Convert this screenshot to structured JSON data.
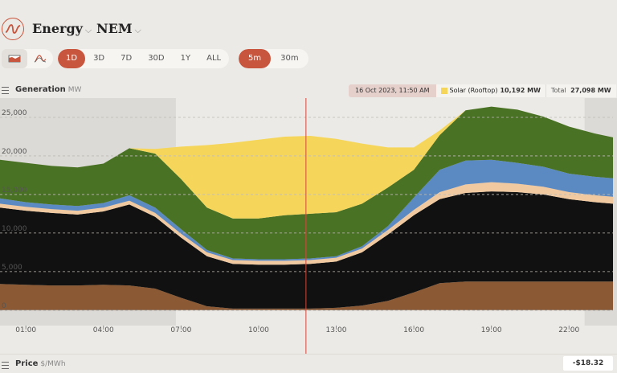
{
  "header": {
    "logo_icon": "waveform-logo-icon",
    "energy_menu": "Energy",
    "region_menu": "NEM"
  },
  "toolbar": {
    "chart_types": [
      {
        "icon": "stacked-area-chart-icon",
        "active": true
      },
      {
        "icon": "line-chart-icon",
        "active": false
      }
    ],
    "ranges": [
      "1D",
      "3D",
      "7D",
      "30D",
      "1Y",
      "ALL"
    ],
    "active_range": "1D",
    "intervals": [
      "5m",
      "30m"
    ],
    "active_interval": "5m"
  },
  "generation_panel": {
    "title": "Generation",
    "unit": "MW",
    "tooltip": {
      "date": "16 Oct 2023, 11:50 AM",
      "series_name": "Solar (Rooftop)",
      "series_value": "10,192 MW",
      "series_color": "#f5d65b",
      "total_label": "Total",
      "total_value": "27,098 MW"
    }
  },
  "chart_data": {
    "type": "area",
    "stacked": true,
    "x_ticks": [
      "01:00",
      "04:00",
      "07:00",
      "10:00",
      "13:00",
      "16:00",
      "19:00",
      "22:00"
    ],
    "y_ticks": [
      "25,000",
      "20,000",
      "15,000",
      "10,000",
      "5,000",
      "0"
    ],
    "ylim": [
      -2000,
      27500
    ],
    "x_hours": [
      0,
      1,
      2,
      3,
      4,
      5,
      6,
      7,
      8,
      9,
      10,
      11,
      12,
      13,
      14,
      15,
      16,
      17,
      18,
      19,
      20,
      21,
      22,
      23,
      23.7
    ],
    "series": [
      {
        "color": "#8b5a34",
        "values": [
          3400,
          3300,
          3200,
          3200,
          3300,
          3200,
          2800,
          1600,
          500,
          200,
          200,
          200,
          200,
          300,
          600,
          1200,
          2300,
          3500,
          3700,
          3700,
          3700,
          3700,
          3700,
          3700,
          3700
        ]
      },
      {
        "color": "#111111",
        "values": [
          9900,
          9600,
          9400,
          9200,
          9500,
          10500,
          9300,
          7800,
          6500,
          5800,
          5700,
          5700,
          5800,
          6000,
          6900,
          8600,
          10000,
          10900,
          11500,
          11700,
          11600,
          11300,
          10700,
          10300,
          10100
        ]
      },
      {
        "color": "#f0c9a0",
        "values": [
          500,
          500,
          500,
          500,
          500,
          500,
          500,
          500,
          500,
          500,
          500,
          500,
          500,
          500,
          500,
          600,
          700,
          900,
          1100,
          1200,
          1100,
          1000,
          900,
          900,
          900
        ]
      },
      {
        "color": "#5b89c2",
        "values": [
          700,
          600,
          600,
          600,
          600,
          700,
          700,
          600,
          300,
          200,
          200,
          200,
          200,
          200,
          300,
          500,
          1600,
          2900,
          3100,
          2900,
          2700,
          2600,
          2400,
          2400,
          2400
        ]
      },
      {
        "color": "#4a7224",
        "values": [
          5000,
          5100,
          5000,
          5000,
          5100,
          6100,
          7000,
          6500,
          5500,
          5200,
          5300,
          5700,
          5800,
          5700,
          5500,
          5000,
          3600,
          4500,
          6500,
          6900,
          6900,
          6500,
          6100,
          5600,
          5300
        ]
      },
      {
        "color": "#f5d65b",
        "values": [
          0,
          0,
          0,
          0,
          0,
          0,
          600,
          4200,
          8100,
          9800,
          10200,
          10200,
          10100,
          9500,
          7800,
          5200,
          2900,
          600,
          0,
          0,
          0,
          0,
          0,
          0,
          0
        ]
      }
    ],
    "cursor_hour": 11.83
  },
  "price_panel": {
    "title": "Price",
    "unit": "$/MWh",
    "value": "-$18.32"
  }
}
